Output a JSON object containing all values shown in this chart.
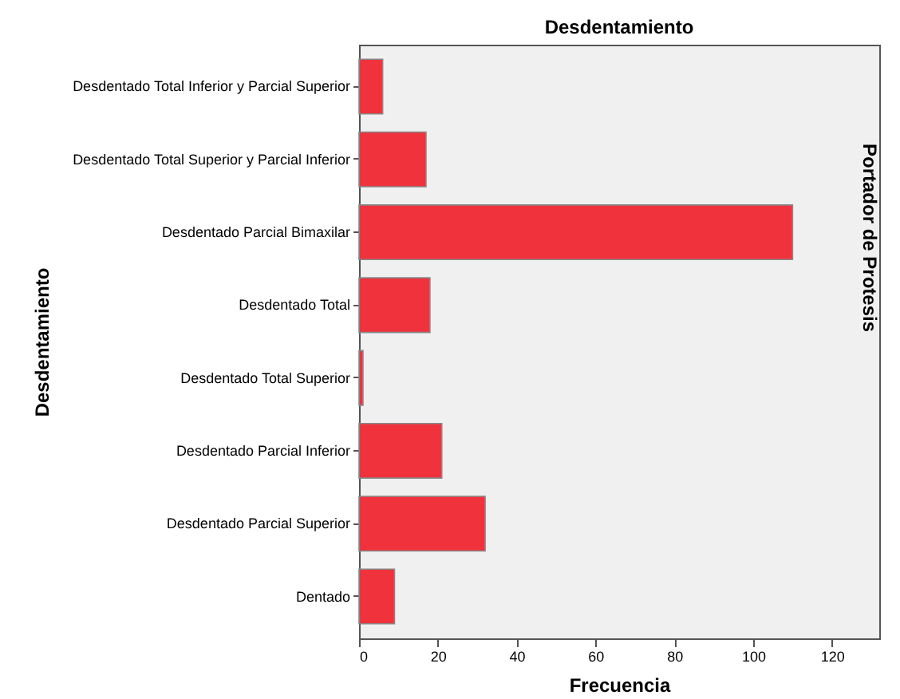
{
  "chart_data": {
    "type": "bar",
    "orientation": "horizontal",
    "title": "Desdentamiento",
    "xlabel": "Frecuencia",
    "ylabel": "Desdentamiento",
    "categories": [
      "Desdentado Total Inferior y Parcial Superior",
      "Desdentado Total Superior y Parcial Inferior",
      "Desdentado Parcial Bimaxilar",
      "Desdentado Total",
      "Desdentado Total Superior",
      "Desdentado Parcial Inferior",
      "Desdentado Parcial Superior",
      "Dentado"
    ],
    "values": [
      6,
      17,
      110,
      18,
      1,
      21,
      32,
      9
    ],
    "color": "#f0323c",
    "xlim": [
      0,
      132
    ],
    "xticks": [
      0,
      20,
      40,
      60,
      80,
      100,
      120
    ],
    "annotations": [
      "Portador de Protesis"
    ]
  }
}
